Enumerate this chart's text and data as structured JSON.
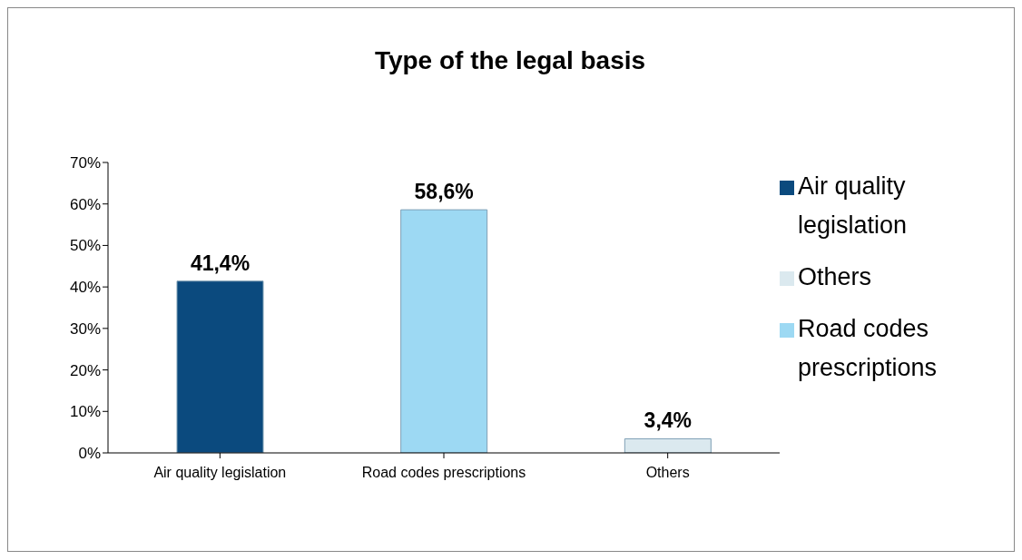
{
  "chart_data": {
    "type": "bar",
    "title": "Type of the legal basis",
    "stacked": true,
    "categories": [
      "Air quality legislation",
      "Road codes prescriptions",
      "Others"
    ],
    "series": [
      {
        "name": "Air quality legislation",
        "color": "#0b4a7e",
        "values": [
          41.4,
          null,
          null
        ],
        "value_labels": [
          "41,4%",
          null,
          null
        ]
      },
      {
        "name": "Road codes prescriptions",
        "color": "#9dd9f3",
        "values": [
          null,
          58.6,
          null
        ],
        "value_labels": [
          null,
          "58,6%",
          null
        ]
      },
      {
        "name": "Others",
        "color": "#dbe9ef",
        "values": [
          null,
          null,
          3.4
        ],
        "value_labels": [
          null,
          null,
          "3,4%"
        ]
      }
    ],
    "ylim": [
      0,
      70
    ],
    "yticks": [
      {
        "value": 0,
        "label": "0%"
      },
      {
        "value": 10,
        "label": "10%"
      },
      {
        "value": 20,
        "label": "20%"
      },
      {
        "value": 30,
        "label": "30%"
      },
      {
        "value": 40,
        "label": "40%"
      },
      {
        "value": 50,
        "label": "50%"
      },
      {
        "value": 60,
        "label": "60%"
      },
      {
        "value": 70,
        "label": "70%"
      }
    ],
    "grid": false,
    "legend": "right"
  }
}
